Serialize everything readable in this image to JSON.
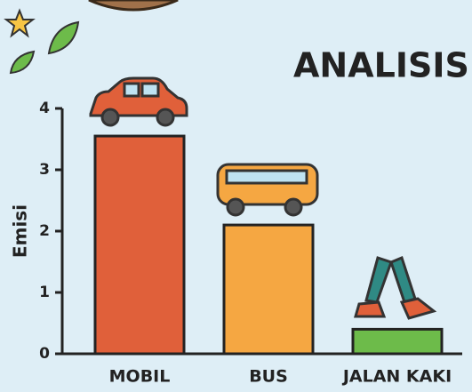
{
  "chart_data": {
    "type": "bar",
    "title": "ANALISIS",
    "y_label": "Emisi",
    "categories": [
      "MOBIL",
      "BUS",
      "JALAN KAKI"
    ],
    "values": [
      3.55,
      2.1,
      0.4
    ],
    "colors": [
      "#e0603a",
      "#f5a742",
      "#6dbb4a"
    ],
    "ylim": [
      0,
      4
    ],
    "yticks": [
      0,
      1,
      2,
      3,
      4
    ]
  }
}
